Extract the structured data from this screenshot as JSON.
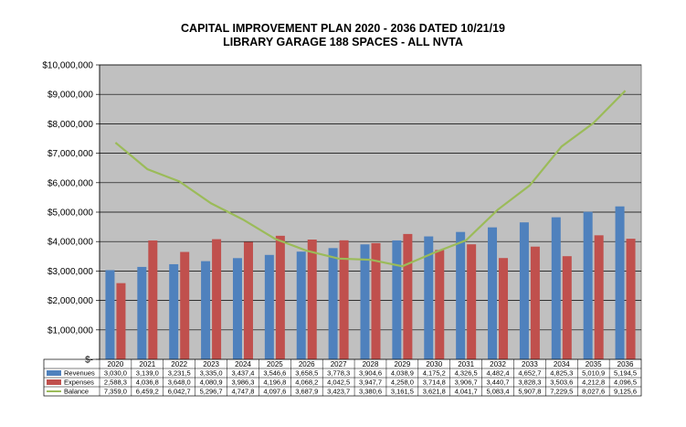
{
  "chart_data": {
    "type": "bar",
    "title": "CAPITAL IMPROVEMENT PLAN 2020 - 2036 DATED 10/21/19",
    "subtitle": "LIBRARY GARAGE 188 SPACES - ALL NVTA",
    "categories": [
      "2020",
      "2021",
      "2022",
      "2023",
      "2024",
      "2025",
      "2026",
      "2027",
      "2028",
      "2029",
      "2030",
      "2031",
      "2032",
      "2033",
      "2034",
      "2035",
      "2036"
    ],
    "ylim": [
      0,
      10000000
    ],
    "y_ticks": [
      0,
      1000000,
      2000000,
      3000000,
      4000000,
      5000000,
      6000000,
      7000000,
      8000000,
      9000000,
      10000000
    ],
    "y_tick_labels": [
      "$-",
      "$1,000,000",
      "$2,000,000",
      "$3,000,000",
      "$4,000,000",
      "$5,000,000",
      "$6,000,000",
      "$7,000,000",
      "$8,000,000",
      "$9,000,000",
      "$10,000,000"
    ],
    "grid": true,
    "legend": "data-table",
    "colors": {
      "plot_bg": "#c0c0c0",
      "Revenues": "#4f81bd",
      "Expenses": "#c0504d",
      "Balance": "#9bbb59"
    },
    "series": [
      {
        "name": "Revenues",
        "kind": "bar",
        "values": [
          3030000,
          3139000,
          3231500,
          3335000,
          3437400,
          3546600,
          3658500,
          3778300,
          3904600,
          4038900,
          4175200,
          4326500,
          4482400,
          4652700,
          4825300,
          5010900,
          5194500
        ],
        "labels": [
          "3,030,0",
          "3,139,0",
          "3,231,5",
          "3,335,0",
          "3,437,4",
          "3,546,6",
          "3,658,5",
          "3,778,3",
          "3,904,6",
          "4,038,9",
          "4,175,2",
          "4,326,5",
          "4,482,4",
          "4,652,7",
          "4,825,3",
          "5,010,9",
          "5,194,5"
        ]
      },
      {
        "name": "Expenses",
        "kind": "bar",
        "values": [
          2588300,
          4036800,
          3648000,
          4080900,
          3986300,
          4196800,
          4068200,
          4042500,
          3947700,
          4258000,
          3714800,
          3906700,
          3440700,
          3828300,
          3503600,
          4212800,
          4096500
        ],
        "labels": [
          "2,588,3",
          "4,036,8",
          "3,648,0",
          "4,080,9",
          "3,986,3",
          "4,196,8",
          "4,068,2",
          "4,042,5",
          "3,947,7",
          "4,258,0",
          "3,714,8",
          "3,906,7",
          "3,440,7",
          "3,828,3",
          "3,503,6",
          "4,212,8",
          "4,096,5"
        ]
      },
      {
        "name": "Balance",
        "kind": "line",
        "values": [
          7359000,
          6459200,
          6042700,
          5296700,
          4747800,
          4097600,
          3687900,
          3423700,
          3380600,
          3161500,
          3621800,
          4041700,
          5083400,
          5907800,
          7229500,
          8027600,
          9125600
        ],
        "labels": [
          "7,359,0",
          "6,459,2",
          "6,042,7",
          "5,296,7",
          "4,747,8",
          "4,097,6",
          "3,687,9",
          "3,423,7",
          "3,380,6",
          "3,161,5",
          "3,621,8",
          "4,041,7",
          "5,083,4",
          "5,907,8",
          "7,229,5",
          "8,027,6",
          "9,125,6"
        ]
      }
    ]
  }
}
